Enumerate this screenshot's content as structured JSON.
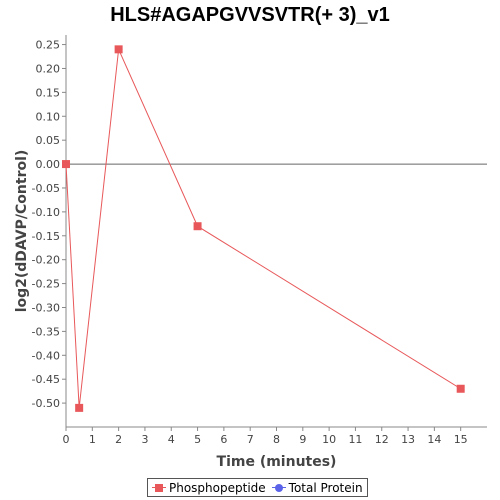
{
  "chart_data": {
    "type": "line",
    "title": "HLS#AGAPGVVSVTR(+ 3)_v1",
    "xlabel": "Time (minutes)",
    "ylabel": "log2(dDAVP/Control)",
    "xlim": [
      0,
      16
    ],
    "ylim": [
      -0.55,
      0.27
    ],
    "x_ticks": [
      0,
      1,
      2,
      3,
      4,
      5,
      6,
      7,
      8,
      9,
      10,
      11,
      12,
      13,
      14,
      15
    ],
    "y_ticks": [
      0.25,
      0.2,
      0.15,
      0.1,
      0.05,
      0.0,
      -0.05,
      -0.1,
      -0.15,
      -0.2,
      -0.25,
      -0.3,
      -0.35,
      -0.4,
      -0.45,
      -0.5
    ],
    "y_tick_labels": [
      "0.25",
      "0.20",
      "0.15",
      "0.10",
      "0.05",
      "0.00",
      "-0.05",
      "-0.10",
      "-0.15",
      "-0.20",
      "-0.25",
      "-0.30",
      "-0.35",
      "-0.40",
      "-0.45",
      "-0.50"
    ],
    "zero_line": true,
    "grid": false,
    "legend_position": "bottom",
    "series": [
      {
        "name": "Phosphopeptide",
        "color": "#e8585a",
        "marker": "square",
        "x": [
          0,
          0.5,
          2,
          5,
          15
        ],
        "y": [
          0.0,
          -0.51,
          0.24,
          -0.13,
          -0.47
        ]
      },
      {
        "name": "Total Protein",
        "color": "#5b63e8",
        "marker": "circle",
        "x": [],
        "y": []
      }
    ]
  }
}
